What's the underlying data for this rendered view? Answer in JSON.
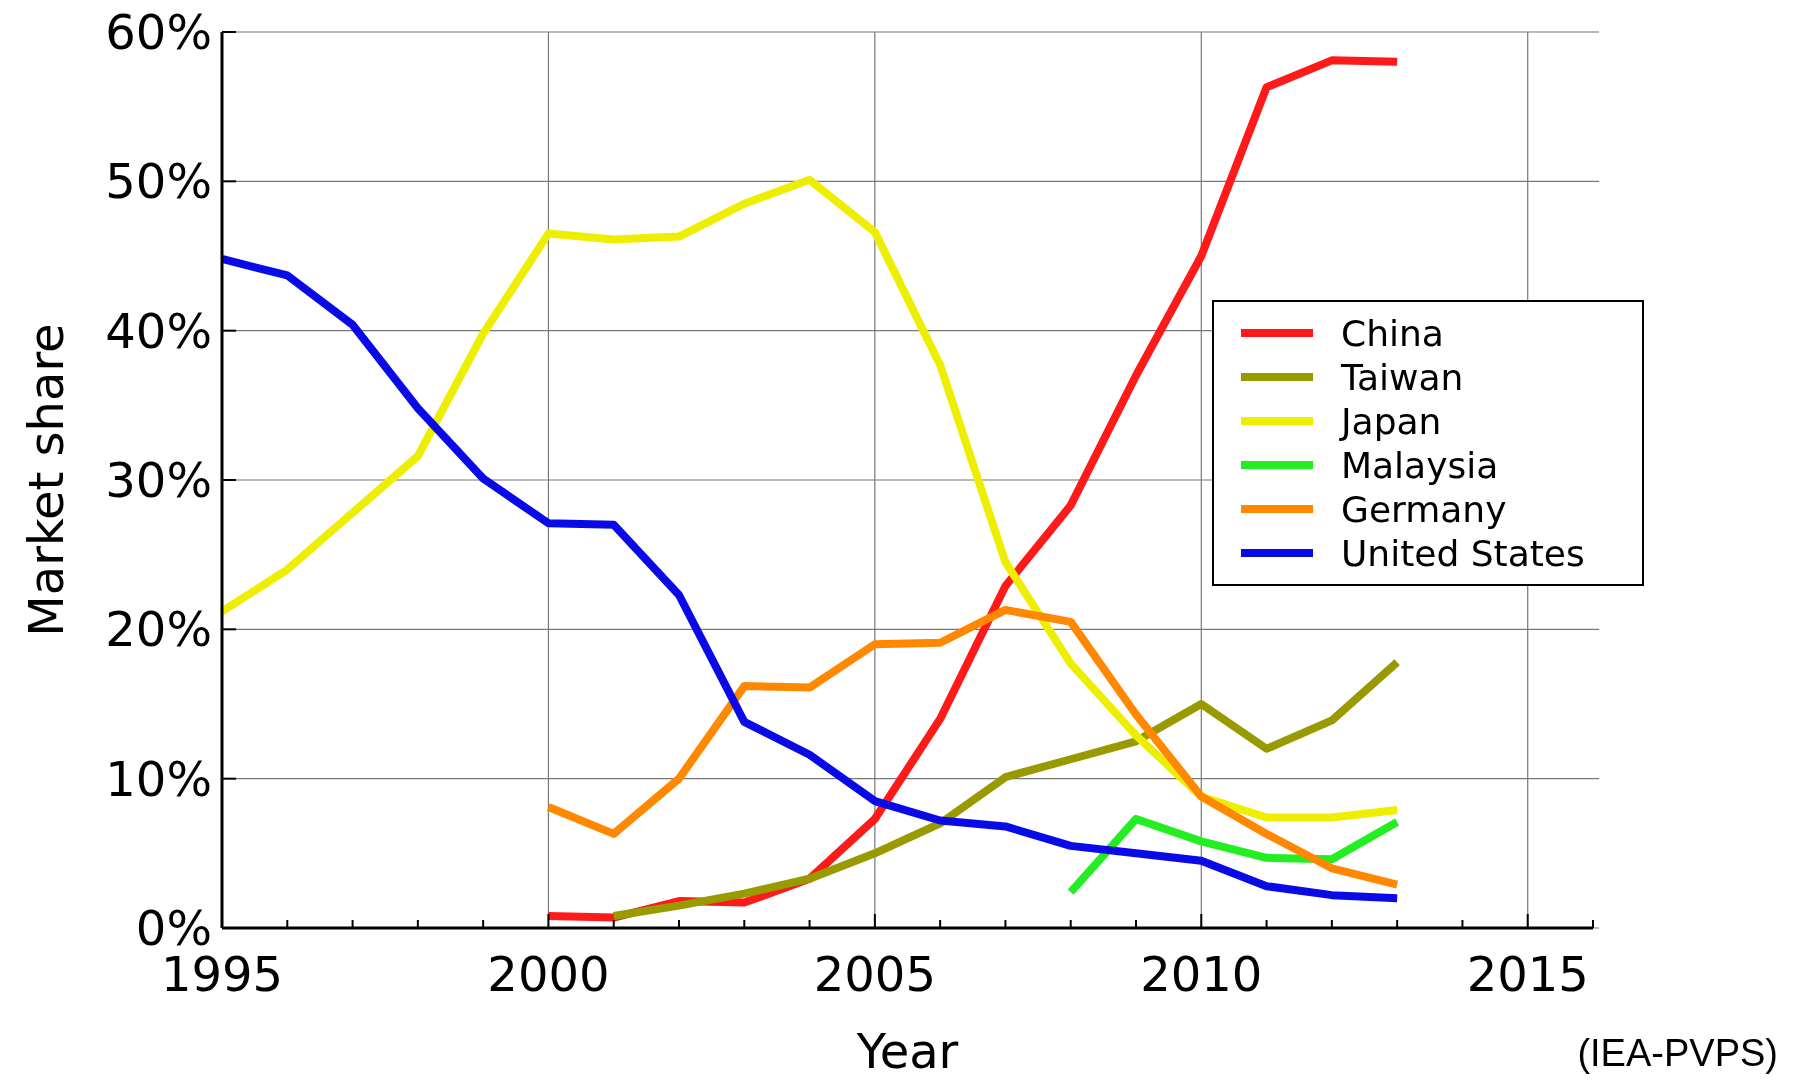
{
  "chart_data": {
    "type": "line",
    "xlabel": "Year",
    "ylabel": "Market share",
    "x": [
      1995,
      1996,
      1997,
      1998,
      1999,
      2000,
      2001,
      2002,
      2003,
      2004,
      2005,
      2006,
      2007,
      2008,
      2009,
      2010,
      2011,
      2012,
      2013
    ],
    "series": [
      {
        "name": "China",
        "color": "#ff1a1a",
        "values": [
          null,
          null,
          null,
          null,
          null,
          0.8,
          0.7,
          1.8,
          1.7,
          3.3,
          7.3,
          14,
          22.9,
          28.3,
          37,
          45,
          56.3,
          58.1,
          58
        ]
      },
      {
        "name": "Taiwan",
        "color": "#999900",
        "values": [
          null,
          null,
          null,
          null,
          null,
          null,
          0.8,
          1.5,
          2.3,
          3.3,
          5,
          7,
          10.1,
          11.3,
          12.5,
          15,
          12,
          13.9,
          17.8
        ]
      },
      {
        "name": "Japan",
        "color": "#eeee00",
        "values": [
          21.2,
          24,
          27.8,
          31.6,
          39.8,
          46.5,
          46.1,
          46.3,
          48.5,
          50.1,
          46.6,
          37.7,
          24.5,
          17.7,
          12.9,
          8.8,
          7.4,
          7.4,
          7.9
        ]
      },
      {
        "name": "Malaysia",
        "color": "#22ee22",
        "values": [
          null,
          null,
          null,
          null,
          null,
          null,
          null,
          null,
          null,
          null,
          null,
          null,
          null,
          2.4,
          7.3,
          5.8,
          4.7,
          4.6,
          7.1
        ]
      },
      {
        "name": "Germany",
        "color": "#ff8800",
        "values": [
          null,
          null,
          null,
          null,
          null,
          8.1,
          6.3,
          10,
          16.2,
          16.1,
          19,
          19.1,
          21.3,
          20.5,
          14.3,
          8.8,
          6.3,
          4,
          2.9
        ]
      },
      {
        "name": "United States",
        "color": "#0a0ae6",
        "values": [
          44.8,
          43.7,
          40.4,
          34.8,
          30.1,
          27.1,
          27,
          22.3,
          13.8,
          11.6,
          8.5,
          7.2,
          6.8,
          5.5,
          5,
          4.5,
          2.8,
          2.2,
          2
        ]
      }
    ],
    "xlim": [
      1995,
      2016
    ],
    "xticks": [
      1995,
      {
        "value": 1996,
        "label": null
      },
      {
        "value": 1997,
        "label": null
      },
      {
        "value": 1998,
        "label": null
      },
      {
        "value": 1999,
        "label": null
      },
      2000,
      {
        "value": 2001,
        "label": null
      },
      {
        "value": 2002,
        "label": null
      },
      {
        "value": 2003,
        "label": null
      },
      {
        "value": 2004,
        "label": null
      },
      2005,
      {
        "value": 2006,
        "label": null
      },
      {
        "value": 2007,
        "label": null
      },
      {
        "value": 2008,
        "label": null
      },
      {
        "value": 2009,
        "label": null
      },
      2010,
      {
        "value": 2011,
        "label": null
      },
      {
        "value": 2012,
        "label": null
      },
      {
        "value": 2013,
        "label": null
      },
      {
        "value": 2014,
        "label": null
      },
      2015,
      {
        "value": 2016,
        "label": null
      }
    ],
    "ylim": [
      0,
      60
    ],
    "yticks": [
      {
        "value": 0,
        "label": "0%"
      },
      {
        "value": 10,
        "label": "10%"
      },
      {
        "value": 20,
        "label": "20%"
      },
      {
        "value": 30,
        "label": "30%"
      },
      {
        "value": 40,
        "label": "40%"
      },
      {
        "value": 50,
        "label": "50%"
      },
      {
        "value": 60,
        "label": "60%"
      }
    ],
    "grid": true,
    "legend": "right",
    "line_style": "solid",
    "annotations": [
      "(IEA-PVPS)"
    ]
  }
}
